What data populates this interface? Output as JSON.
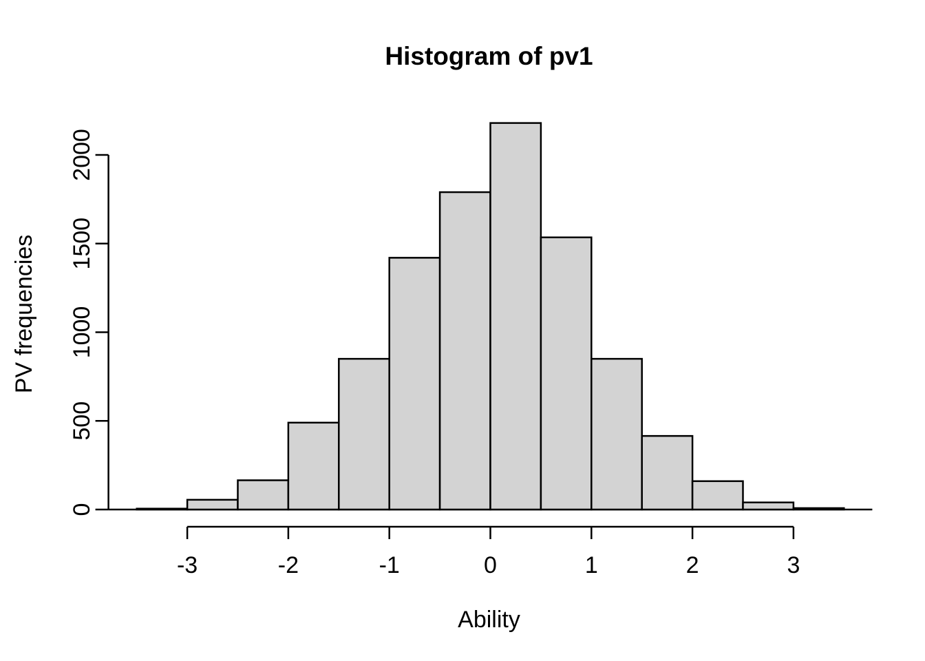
{
  "chart_data": {
    "type": "bar",
    "subtype": "histogram",
    "title": "Histogram of pv1",
    "xlabel": "Ability",
    "ylabel": "PV frequencies",
    "bin_width": 0.5,
    "bin_edges": [
      -3.5,
      -3.0,
      -2.5,
      -2.0,
      -1.5,
      -1.0,
      -0.5,
      0.0,
      0.5,
      1.0,
      1.5,
      2.0,
      2.5,
      3.0,
      3.5
    ],
    "frequencies": [
      5,
      55,
      165,
      490,
      850,
      1420,
      1790,
      2180,
      1535,
      850,
      415,
      160,
      40,
      8
    ],
    "x_ticks": [
      -3,
      -2,
      -1,
      0,
      1,
      2,
      3
    ],
    "y_ticks": [
      0,
      500,
      1000,
      1500,
      2000
    ],
    "xlim": [
      -3.78,
      3.78
    ],
    "ylim": [
      0,
      2180
    ],
    "grid": false,
    "legend": false,
    "colors": {
      "bar_fill": "#D3D3D3",
      "bar_border": "#000000",
      "axis": "#000000",
      "text": "#000000",
      "background": "#FFFFFF"
    }
  }
}
